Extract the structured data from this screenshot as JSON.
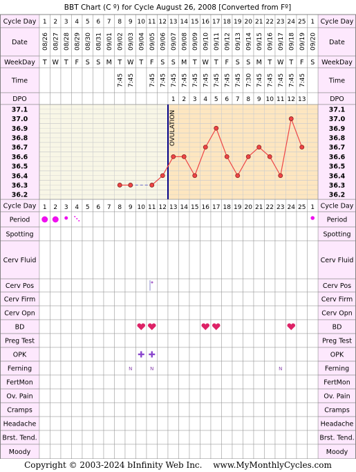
{
  "title": "BBT Chart (C º) for Cycle August 26, 2008  [Converted from Fº]",
  "footer": {
    "copyright": "Copyright © 2003-2024 bInfinity Web Inc.",
    "site": "www.MyMonthlyCycles.com"
  },
  "colors": {
    "label_bg": "#fde8fd",
    "grid_bg": "#f8f6e6",
    "post_ov_bg": "#fde6c0",
    "grid_line": "#cccccc",
    "temp_line": "#ee4444",
    "temp_dot": "#ee4444",
    "ovulation_line": "#000088",
    "period": "#ee11ee",
    "heart": "#dd2266",
    "opk": "#8844cc",
    "ferning": "#8844aa"
  },
  "row_labels": {
    "cycle_day": "Cycle Day",
    "date": "Date",
    "weekday": "WeekDay",
    "time": "Time",
    "dpo": "DPO",
    "period": "Period",
    "spotting": "Spotting",
    "cerv_fluid": "Cerv Fluid",
    "cerv_pos": "Cerv Pos",
    "cerv_firm": "Cerv Firm",
    "cerv_opn": "Cerv Opn",
    "bd": "BD",
    "preg_test": "Preg Test",
    "opk": "OPK",
    "ferning": "Ferning",
    "fertmon": "FertMon",
    "ov_pain": "Ov. Pain",
    "cramps": "Cramps",
    "headache": "Headache",
    "brst_tend": "Brst. Tend.",
    "moody": "Moody"
  },
  "ovulation_label": "OVULATION",
  "days": [
    {
      "cd": "1",
      "date": "08/26",
      "wd": "T",
      "time": "",
      "dpo": ""
    },
    {
      "cd": "2",
      "date": "08/27",
      "wd": "W",
      "time": "",
      "dpo": ""
    },
    {
      "cd": "3",
      "date": "08/28",
      "wd": "T",
      "time": "",
      "dpo": ""
    },
    {
      "cd": "4",
      "date": "08/29",
      "wd": "F",
      "time": "",
      "dpo": ""
    },
    {
      "cd": "5",
      "date": "08/30",
      "wd": "S",
      "time": "",
      "dpo": ""
    },
    {
      "cd": "6",
      "date": "08/31",
      "wd": "S",
      "time": "",
      "dpo": ""
    },
    {
      "cd": "7",
      "date": "09/01",
      "wd": "M",
      "time": "",
      "dpo": ""
    },
    {
      "cd": "8",
      "date": "09/02",
      "wd": "T",
      "time": "7:45",
      "dpo": ""
    },
    {
      "cd": "9",
      "date": "09/03",
      "wd": "W",
      "time": "7:45",
      "dpo": ""
    },
    {
      "cd": "10",
      "date": "09/04",
      "wd": "T",
      "time": "",
      "dpo": ""
    },
    {
      "cd": "11",
      "date": "09/05",
      "wd": "F",
      "time": "7:45",
      "dpo": ""
    },
    {
      "cd": "12",
      "date": "09/06",
      "wd": "S",
      "time": "7:45",
      "dpo": ""
    },
    {
      "cd": "13",
      "date": "09/07",
      "wd": "S",
      "time": "7:45",
      "dpo": "1"
    },
    {
      "cd": "14",
      "date": "09/08",
      "wd": "M",
      "time": "7:45",
      "dpo": "2"
    },
    {
      "cd": "15",
      "date": "09/09",
      "wd": "T",
      "time": "7:45",
      "dpo": "3"
    },
    {
      "cd": "16",
      "date": "09/10",
      "wd": "W",
      "time": "7:45",
      "dpo": "4"
    },
    {
      "cd": "17",
      "date": "09/11",
      "wd": "T",
      "time": "7:45",
      "dpo": "5"
    },
    {
      "cd": "18",
      "date": "09/12",
      "wd": "F",
      "time": "7:45",
      "dpo": "6"
    },
    {
      "cd": "19",
      "date": "09/13",
      "wd": "S",
      "time": "7:45",
      "dpo": "7"
    },
    {
      "cd": "20",
      "date": "09/14",
      "wd": "S",
      "time": "7:30",
      "dpo": "8"
    },
    {
      "cd": "21",
      "date": "09/15",
      "wd": "M",
      "time": "7:45",
      "dpo": "9"
    },
    {
      "cd": "22",
      "date": "09/16",
      "wd": "T",
      "time": "7:45",
      "dpo": "10"
    },
    {
      "cd": "23",
      "date": "09/17",
      "wd": "W",
      "time": "7:45",
      "dpo": "11"
    },
    {
      "cd": "24",
      "date": "09/18",
      "wd": "T",
      "time": "7:45",
      "dpo": "12"
    },
    {
      "cd": "25",
      "date": "09/19",
      "wd": "F",
      "time": "7:45",
      "dpo": "13"
    },
    {
      "cd": "1",
      "date": "09/20",
      "wd": "S",
      "time": "",
      "dpo": ""
    }
  ],
  "chart_data": {
    "type": "line",
    "title": "BBT Chart (C º) for Cycle August 26, 2008  [Converted from Fº]",
    "x_label": "Cycle Day",
    "y_ticks": [
      "37.1",
      "37.0",
      "36.9",
      "36.8",
      "36.7",
      "36.6",
      "36.5",
      "36.4",
      "36.3",
      "36.2"
    ],
    "ylim": [
      36.2,
      37.1
    ],
    "ovulation_after_day": 12,
    "series": [
      {
        "temps": [
          null,
          null,
          null,
          null,
          null,
          null,
          null,
          36.3,
          36.3,
          null,
          36.3,
          36.4,
          36.6,
          36.6,
          36.4,
          36.7,
          36.9,
          36.6,
          36.4,
          36.6,
          36.7,
          36.6,
          36.4,
          37.0,
          36.7,
          null
        ],
        "dashed_gaps": [
          [
            9,
            11
          ]
        ]
      }
    ]
  },
  "observations": {
    "period": [
      "heavy",
      "heavy",
      "medium",
      "spotting-light",
      "",
      "",
      "",
      "",
      "",
      "",
      "",
      "",
      "",
      "",
      "",
      "",
      "",
      "",
      "",
      "",
      "",
      "",
      "",
      "",
      "",
      "light"
    ],
    "cerv_pos": [
      11
    ],
    "bd": [
      10,
      11,
      16,
      17,
      24
    ],
    "opk": [
      10,
      11
    ],
    "ferning": {
      "9": "N",
      "11": "N",
      "23": "N"
    }
  }
}
